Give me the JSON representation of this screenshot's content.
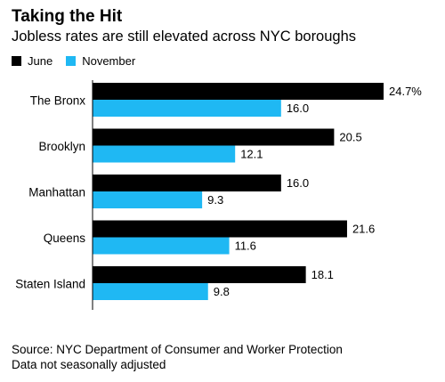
{
  "header": {
    "title": "Taking the Hit",
    "subtitle": "Jobless rates are still elevated across NYC boroughs"
  },
  "footer": {
    "source": "Source: NYC Department of Consumer and Worker Protection",
    "note": "Data not seasonally adjusted"
  },
  "chart_data": {
    "type": "bar",
    "orientation": "horizontal",
    "categories": [
      "The Bronx",
      "Brooklyn",
      "Manhattan",
      "Queens",
      "Staten Island"
    ],
    "series": [
      {
        "name": "June",
        "color": "#000000",
        "values": [
          24.7,
          20.5,
          16.0,
          21.6,
          18.1
        ],
        "labels": [
          "24.7%",
          "20.5",
          "16.0",
          "21.6",
          "18.1"
        ]
      },
      {
        "name": "November",
        "color": "#1fb8f3",
        "values": [
          16.0,
          12.1,
          9.3,
          11.6,
          9.8
        ],
        "labels": [
          "16.0",
          "12.1",
          "9.3",
          "11.6",
          "9.8"
        ]
      }
    ],
    "xlim": [
      0,
      24.7
    ],
    "grid": false,
    "legend_position": "top-left"
  }
}
